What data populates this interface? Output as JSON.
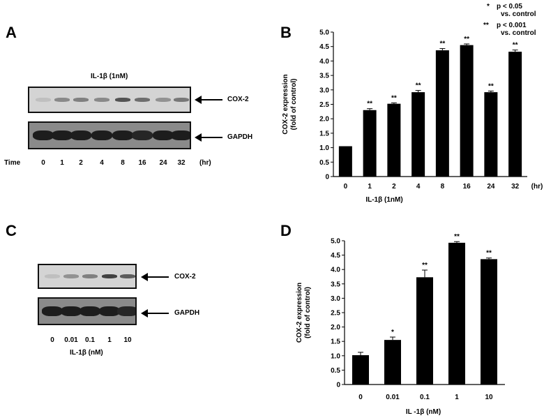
{
  "panels": {
    "a": "A",
    "b": "B",
    "c": "C",
    "d": "D"
  },
  "blot_a": {
    "treatment_label": "IL-1β (1nM)",
    "cox2_label": "COX-2",
    "gapdh_label": "GAPDH",
    "time_label": "Time",
    "lanes": [
      "0",
      "1",
      "2",
      "4",
      "8",
      "16",
      "24",
      "32"
    ],
    "unit": "(hr)"
  },
  "blot_c": {
    "cox2_label": "COX-2",
    "gapdh_label": "GAPDH",
    "lanes": [
      "0",
      "0.01",
      "0.1",
      "1",
      "10"
    ],
    "xlabel": "IL-1β (nM)"
  },
  "legend": {
    "single_star": "*",
    "single_text": "p < 0.05",
    "single_text2": "vs. control",
    "double_star": "**",
    "double_text": "p < 0.001",
    "double_text2": "vs. control"
  },
  "chart_data": [
    {
      "type": "bar",
      "panel": "B",
      "categories": [
        "0",
        "1",
        "2",
        "4",
        "8",
        "16",
        "24",
        "32"
      ],
      "values": [
        1.05,
        2.3,
        2.52,
        2.92,
        4.37,
        4.55,
        2.92,
        4.32
      ],
      "errors": [
        0.0,
        0.05,
        0.03,
        0.06,
        0.06,
        0.04,
        0.04,
        0.06
      ],
      "annotations": [
        "",
        "**",
        "**",
        "**",
        "**",
        "**",
        "**",
        "**"
      ],
      "xlabel": "IL-1β (1nM)",
      "xunit": "(hr)",
      "ylabel": "COX-2 expression",
      "ylabel2": "(fold of control)",
      "ylim": [
        0,
        5.0
      ],
      "yticks": [
        "0",
        "0.5",
        "1.0",
        "1.5",
        "2.0",
        "2.5",
        "3.0",
        "3.5",
        "4.0",
        "4.5",
        "5.0"
      ],
      "color": "#000000"
    },
    {
      "type": "bar",
      "panel": "D",
      "categories": [
        "0",
        "0.01",
        "0.1",
        "1",
        "10"
      ],
      "values": [
        1.02,
        1.55,
        3.73,
        4.93,
        4.36
      ],
      "errors": [
        0.1,
        0.1,
        0.25,
        0.04,
        0.04
      ],
      "annotations": [
        "",
        "*",
        "**",
        "**",
        "**"
      ],
      "xlabel": "IL -1β (nM)",
      "ylabel": "COX-2 expression",
      "ylabel2": "(fold of control)",
      "ylim": [
        0,
        5.0
      ],
      "yticks": [
        "0",
        "0.5",
        "1.0",
        "1.5",
        "2.0",
        "2.5",
        "3.0",
        "3.5",
        "4.0",
        "4.5",
        "5.0"
      ],
      "color": "#000000"
    }
  ]
}
